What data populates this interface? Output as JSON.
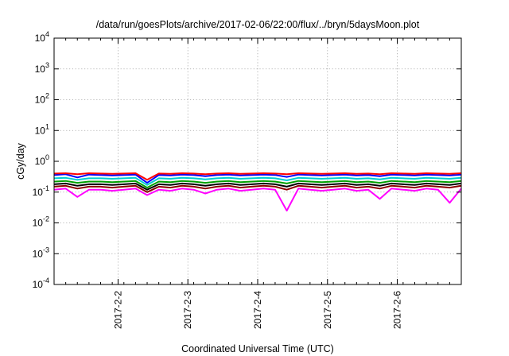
{
  "chart_data": {
    "type": "line",
    "title": "/data/run/goesPlots/archive/2017-02-06/22:00/flux/../bryn/5daysMoon.plot",
    "xlabel": "Coordinated Universal Time (UTC)",
    "ylabel": "cGy/day",
    "yscale": "log",
    "ylim": [
      0.0001,
      10000
    ],
    "xlim": [
      "2017-02-01 02:00",
      "2017-02-06 22:00"
    ],
    "grid": true,
    "legend": "none",
    "y_ticks": [
      {
        "base": "10",
        "exp": "-4",
        "value": 0.0001
      },
      {
        "base": "10",
        "exp": "-3",
        "value": 0.001
      },
      {
        "base": "10",
        "exp": "-2",
        "value": 0.01
      },
      {
        "base": "10",
        "exp": "-1",
        "value": 0.1
      },
      {
        "base": "10",
        "exp": "0",
        "value": 1
      },
      {
        "base": "10",
        "exp": "1",
        "value": 10
      },
      {
        "base": "10",
        "exp": "2",
        "value": 100
      },
      {
        "base": "10",
        "exp": "3",
        "value": 1000
      },
      {
        "base": "10",
        "exp": "4",
        "value": 10000
      }
    ],
    "x_ticks": [
      {
        "label": "2017-2-2",
        "value": "2017-02-02 00:00"
      },
      {
        "label": "2017-2-3",
        "value": "2017-02-03 00:00"
      },
      {
        "label": "2017-2-4",
        "value": "2017-02-04 00:00"
      },
      {
        "label": "2017-2-5",
        "value": "2017-02-05 00:00"
      },
      {
        "label": "2017-2-6",
        "value": "2017-02-06 00:00"
      }
    ],
    "x": [
      "2017-02-01 02:00",
      "2017-02-01 06:00",
      "2017-02-01 10:00",
      "2017-02-01 14:00",
      "2017-02-01 18:00",
      "2017-02-01 22:00",
      "2017-02-02 02:00",
      "2017-02-02 06:00",
      "2017-02-02 10:00",
      "2017-02-02 14:00",
      "2017-02-02 18:00",
      "2017-02-02 22:00",
      "2017-02-03 02:00",
      "2017-02-03 06:00",
      "2017-02-03 10:00",
      "2017-02-03 14:00",
      "2017-02-03 18:00",
      "2017-02-03 22:00",
      "2017-02-04 02:00",
      "2017-02-04 06:00",
      "2017-02-04 10:00",
      "2017-02-04 14:00",
      "2017-02-04 18:00",
      "2017-02-04 22:00",
      "2017-02-05 02:00",
      "2017-02-05 06:00",
      "2017-02-05 10:00",
      "2017-02-05 14:00",
      "2017-02-05 18:00",
      "2017-02-05 22:00",
      "2017-02-06 02:00",
      "2017-02-06 06:00",
      "2017-02-06 10:00",
      "2017-02-06 14:00",
      "2017-02-06 18:00",
      "2017-02-06 22:00"
    ],
    "series": [
      {
        "color": "#ff0000",
        "values": [
          0.4,
          0.41,
          0.38,
          0.41,
          0.4,
          0.39,
          0.4,
          0.41,
          0.25,
          0.4,
          0.39,
          0.41,
          0.4,
          0.38,
          0.4,
          0.41,
          0.39,
          0.4,
          0.41,
          0.4,
          0.38,
          0.41,
          0.4,
          0.39,
          0.4,
          0.41,
          0.39,
          0.4,
          0.38,
          0.41,
          0.4,
          0.39,
          0.41,
          0.4,
          0.39,
          0.41
        ]
      },
      {
        "color": "#0000ff",
        "values": [
          0.36,
          0.38,
          0.3,
          0.37,
          0.36,
          0.35,
          0.36,
          0.37,
          0.2,
          0.36,
          0.35,
          0.37,
          0.36,
          0.33,
          0.36,
          0.37,
          0.35,
          0.36,
          0.37,
          0.36,
          0.31,
          0.37,
          0.36,
          0.35,
          0.36,
          0.37,
          0.35,
          0.36,
          0.33,
          0.37,
          0.36,
          0.35,
          0.37,
          0.36,
          0.35,
          0.37
        ]
      },
      {
        "color": "#00ced1",
        "values": [
          0.28,
          0.29,
          0.25,
          0.28,
          0.28,
          0.27,
          0.28,
          0.29,
          0.17,
          0.28,
          0.27,
          0.29,
          0.28,
          0.26,
          0.28,
          0.29,
          0.27,
          0.28,
          0.29,
          0.28,
          0.24,
          0.29,
          0.28,
          0.27,
          0.28,
          0.29,
          0.27,
          0.28,
          0.26,
          0.29,
          0.28,
          0.27,
          0.29,
          0.28,
          0.27,
          0.29
        ]
      },
      {
        "color": "#00a000",
        "values": [
          0.22,
          0.23,
          0.2,
          0.22,
          0.22,
          0.21,
          0.22,
          0.23,
          0.14,
          0.22,
          0.21,
          0.23,
          0.22,
          0.2,
          0.22,
          0.23,
          0.21,
          0.22,
          0.23,
          0.22,
          0.19,
          0.23,
          0.22,
          0.21,
          0.22,
          0.23,
          0.21,
          0.22,
          0.2,
          0.23,
          0.22,
          0.21,
          0.23,
          0.22,
          0.21,
          0.23
        ]
      },
      {
        "color": "#000000",
        "values": [
          0.18,
          0.19,
          0.16,
          0.18,
          0.18,
          0.17,
          0.18,
          0.19,
          0.12,
          0.18,
          0.17,
          0.19,
          0.18,
          0.16,
          0.18,
          0.19,
          0.17,
          0.18,
          0.19,
          0.18,
          0.15,
          0.19,
          0.18,
          0.17,
          0.18,
          0.19,
          0.17,
          0.18,
          0.16,
          0.19,
          0.18,
          0.17,
          0.19,
          0.18,
          0.17,
          0.19
        ]
      },
      {
        "color": "#8b0000",
        "values": [
          0.15,
          0.16,
          0.13,
          0.15,
          0.15,
          0.14,
          0.15,
          0.16,
          0.1,
          0.15,
          0.14,
          0.16,
          0.15,
          0.13,
          0.15,
          0.16,
          0.14,
          0.15,
          0.16,
          0.15,
          0.12,
          0.16,
          0.15,
          0.14,
          0.15,
          0.16,
          0.14,
          0.15,
          0.13,
          0.16,
          0.15,
          0.14,
          0.16,
          0.15,
          0.14,
          0.16
        ]
      },
      {
        "color": "#ff00ff",
        "values": [
          0.12,
          0.13,
          0.07,
          0.12,
          0.12,
          0.11,
          0.12,
          0.13,
          0.08,
          0.12,
          0.11,
          0.13,
          0.12,
          0.09,
          0.12,
          0.13,
          0.11,
          0.12,
          0.13,
          0.12,
          0.025,
          0.13,
          0.12,
          0.11,
          0.12,
          0.13,
          0.11,
          0.12,
          0.06,
          0.13,
          0.12,
          0.11,
          0.13,
          0.12,
          0.045,
          0.13
        ]
      }
    ]
  }
}
